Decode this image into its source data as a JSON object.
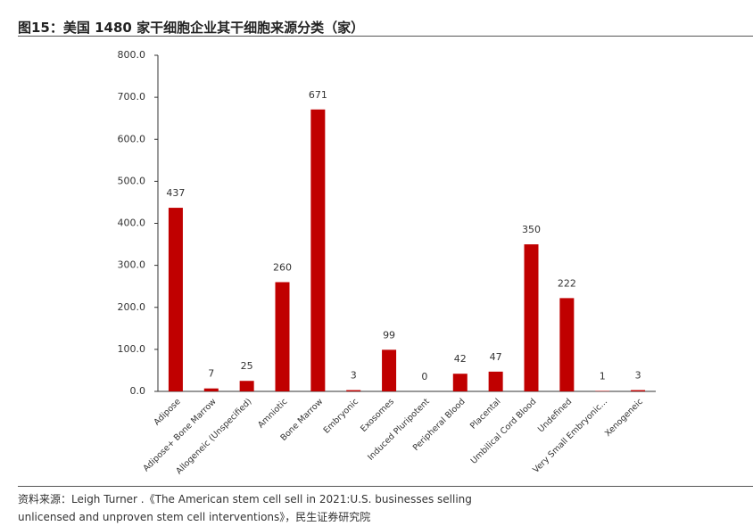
{
  "chart_data": {
    "type": "bar",
    "title": "图15：美国 1480 家干细胞企业其干细胞来源分类（家）",
    "categories": [
      "Adipose",
      "Adipose+ Bone Marrow",
      "Allogeneic (Unspecified)",
      "Amniotic",
      "Bone Marrow",
      "Embryonic",
      "Exosomes",
      "Induced Pluripotent",
      "Peripheral Blood",
      "Placental",
      "Umbilical Cord Blood",
      "Undefined",
      "Very Small Embryonic...",
      "Xenogeneic"
    ],
    "values": [
      437,
      7,
      25,
      260,
      671,
      3,
      99,
      0,
      42,
      47,
      350,
      222,
      1,
      3
    ],
    "color": "#c00000",
    "ylim": [
      0,
      800
    ],
    "yticks": [
      {
        "value": 0,
        "label": "0.0"
      },
      {
        "value": 100,
        "label": "100.0"
      },
      {
        "value": 200,
        "label": "200.0"
      },
      {
        "value": 300,
        "label": "300.0"
      },
      {
        "value": 400,
        "label": "400.0"
      },
      {
        "value": 500,
        "label": "500.0"
      },
      {
        "value": 600,
        "label": "600.0"
      },
      {
        "value": 700,
        "label": "700.0"
      },
      {
        "value": 800,
        "label": "800.0"
      }
    ],
    "grid": false,
    "source": "资料来源：Leigh Turner .《The American stem cell sell in 2021:U.S. businesses selling unlicensed and unproven stem cell interventions》，民生证券研究院"
  }
}
